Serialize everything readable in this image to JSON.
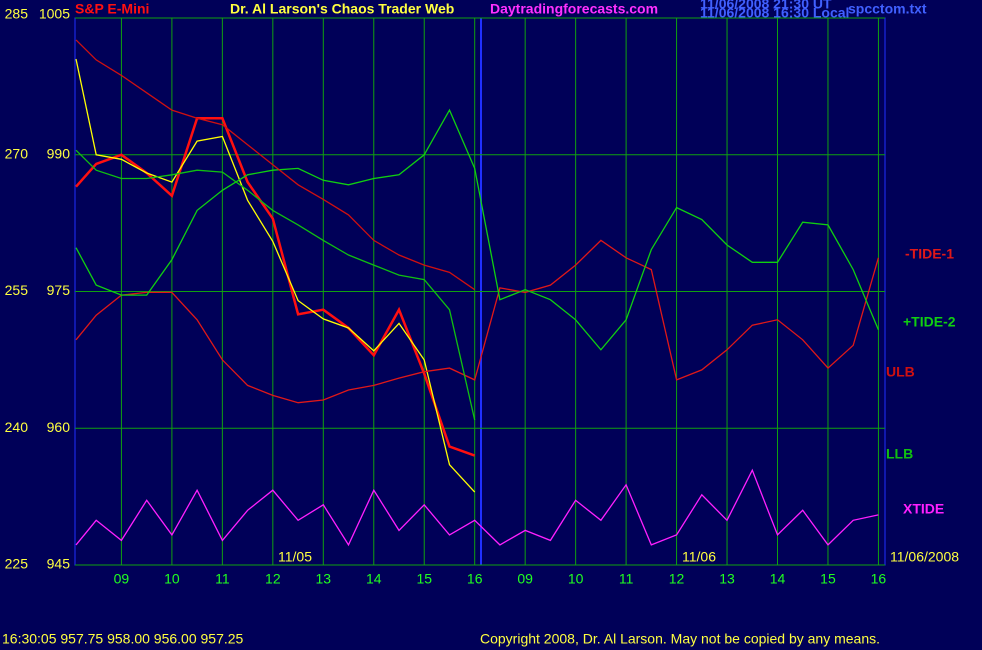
{
  "chart_data": {
    "type": "line",
    "title": "Dr. Al Larson's Chaos Trader Web",
    "site": "Daytradingforecasts.com",
    "timestamp_ut": "11/06/2008 21:30 UT",
    "timestamp_local": "11/06/2008 16:30 Local",
    "file_name": "spcctom.txt",
    "date_labels": [
      "11/05",
      "11/06",
      "11/06/2008"
    ],
    "quote": "16:30:05  957.75 958.00 956.00 957.25",
    "copyright": "Copyright 2008, Dr. Al Larson. May not be copied by any means.",
    "x": [
      0.1,
      0.5,
      1,
      1.5,
      2,
      2.5,
      3,
      3.5,
      4,
      4.5,
      5,
      5.5,
      6,
      6.5,
      7,
      7.5,
      8,
      8.5,
      9,
      9.5,
      10,
      10.5,
      11,
      11.5,
      12,
      12.5,
      13,
      13.5,
      14,
      14.5,
      15,
      15.5,
      16
    ],
    "xlim": [
      0.08,
      16.13
    ],
    "xticks": [
      {
        "value": 1,
        "label": "09"
      },
      {
        "value": 2,
        "label": "10"
      },
      {
        "value": 3,
        "label": "11"
      },
      {
        "value": 4,
        "label": "12"
      },
      {
        "value": 5,
        "label": "13"
      },
      {
        "value": 6,
        "label": "14"
      },
      {
        "value": 7,
        "label": "15"
      },
      {
        "value": 8,
        "label": "16"
      },
      {
        "value": 9,
        "label": "09"
      },
      {
        "value": 10,
        "label": "10"
      },
      {
        "value": 11,
        "label": "11"
      },
      {
        "value": 12,
        "label": "12"
      },
      {
        "value": 13,
        "label": "13"
      },
      {
        "value": 14,
        "label": "14"
      },
      {
        "value": 15,
        "label": "15"
      },
      {
        "value": 16,
        "label": "16"
      }
    ],
    "ylim": [
      945,
      1005
    ],
    "yticks": [
      945,
      960,
      975,
      990,
      1005
    ],
    "y2lim": [
      225,
      285
    ],
    "y2ticks": [
      225,
      240,
      255,
      270,
      285
    ],
    "grid": true,
    "series": [
      {
        "name": "S&P E-Mini",
        "color": "#ff1010",
        "values": [
          986.5,
          989,
          990,
          988,
          985.5,
          994,
          994,
          987,
          983,
          972.5,
          973,
          971,
          968,
          973,
          966,
          958,
          957,
          null,
          null,
          null,
          null,
          null,
          null,
          null,
          null,
          null,
          null,
          null,
          null,
          null,
          null,
          null,
          null
        ]
      },
      {
        "color": "#ffff00",
        "values": [
          1000.5,
          990,
          989.5,
          988,
          987,
          991.5,
          992,
          985,
          980.5,
          974,
          972,
          971,
          968.5,
          971.5,
          967.5,
          956,
          953,
          null,
          null,
          null,
          null,
          null,
          null,
          null,
          null,
          null,
          null,
          null,
          null,
          null,
          null,
          null,
          null
        ]
      },
      {
        "name": "-TIDE-1",
        "color": "#e01818",
        "values": [
          969.7,
          972.4,
          974.6,
          974.9,
          974.9,
          971.9,
          967.5,
          964.7,
          963.6,
          962.8,
          963.1,
          964.2,
          964.7,
          965.5,
          966.2,
          966.6,
          965.3,
          975.4,
          974.9,
          975.7,
          977.9,
          980.6,
          978.7,
          977.4,
          965.3,
          966.4,
          968.6,
          971.3,
          971.9,
          969.7,
          966.6,
          969.1,
          978.7
        ]
      },
      {
        "name": "+TIDE-2",
        "color": "#10d010",
        "values": [
          979.8,
          975.7,
          974.6,
          974.6,
          978.5,
          983.9,
          986.1,
          987.8,
          988.3,
          988.5,
          987.2,
          986.7,
          987.4,
          987.8,
          990,
          994.9,
          988.5,
          974.1,
          975.2,
          974.1,
          971.9,
          968.6,
          971.9,
          979.6,
          984.2,
          982.9,
          980.1,
          978.2,
          978.2,
          982.6,
          982.3,
          977.4,
          970.8
        ]
      },
      {
        "name": "ULB",
        "color": "#d01010",
        "values": [
          1002.6,
          1000.4,
          998.7,
          996.8,
          994.9,
          994,
          993.3,
          991.1,
          988.9,
          986.7,
          985.1,
          983.4,
          980.6,
          979,
          977.9,
          977.1,
          975.2,
          null,
          null,
          null,
          null,
          null,
          null,
          null,
          null,
          null,
          null,
          null,
          null,
          null,
          null,
          null,
          null
        ]
      },
      {
        "name": "LLB",
        "color": "#10c010",
        "values": [
          990.5,
          988.3,
          987.4,
          987.4,
          987.8,
          988.3,
          988.1,
          986.1,
          983.9,
          982.3,
          980.6,
          979,
          977.9,
          976.8,
          976.3,
          973,
          960.9,
          null,
          null,
          null,
          null,
          null,
          null,
          null,
          null,
          null,
          null,
          null,
          null,
          null,
          null,
          null,
          null
        ]
      },
      {
        "name": "XTIDE",
        "color": "#ff20ff",
        "values": [
          947.2,
          949.9,
          947.7,
          952.1,
          948.3,
          953.2,
          947.7,
          951,
          953.2,
          949.9,
          951.6,
          947.2,
          953.2,
          948.8,
          951.6,
          948.3,
          949.9,
          947.2,
          948.8,
          947.7,
          952.1,
          949.9,
          953.8,
          947.2,
          948.3,
          952.7,
          949.9,
          955.4,
          948.3,
          951,
          947.2,
          949.9,
          950.5
        ]
      }
    ]
  }
}
